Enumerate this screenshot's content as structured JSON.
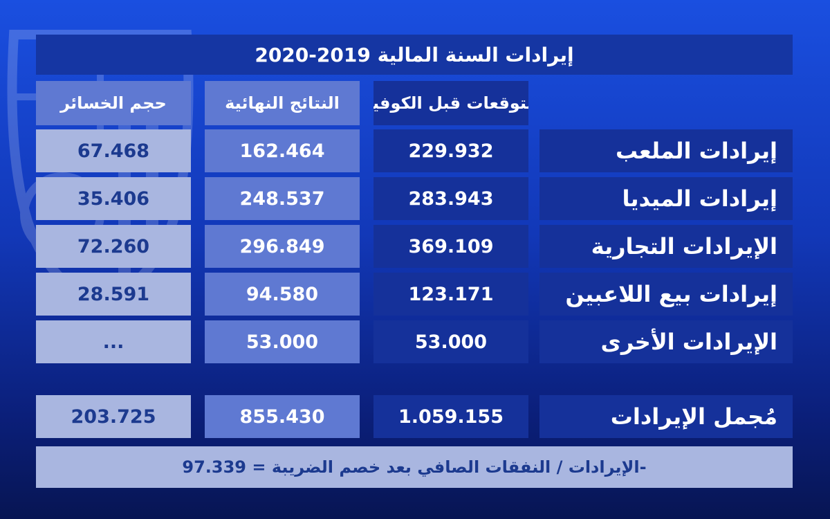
{
  "title": "إيرادات السنة المالية 2019-2020",
  "headers": {
    "pre_covid": "التوقعات قبل الكوفيد",
    "final_results": "النتائج النهائية",
    "losses": "حجم الخسائر"
  },
  "rows": [
    {
      "label": "إيرادات الملعب",
      "pre_covid": "229.932",
      "final": "162.464",
      "losses": "67.468"
    },
    {
      "label": "إيرادات الميديا",
      "pre_covid": "283.943",
      "final": "248.537",
      "losses": "35.406"
    },
    {
      "label": "الإيرادات التجارية",
      "pre_covid": "369.109",
      "final": "296.849",
      "losses": "72.260"
    },
    {
      "label": "إيرادات بيع اللاعبين",
      "pre_covid": "123.171",
      "final": "94.580",
      "losses": "28.591"
    },
    {
      "label": "الإيرادات الأخرى",
      "pre_covid": "53.000",
      "final": "53.000",
      "losses": "..."
    }
  ],
  "total": {
    "label": "مُجمل الإيرادات",
    "pre_covid": "1.059.155",
    "final": "855.430",
    "losses": "203.725"
  },
  "net_line": "الإيرادات / النفقات الصافي بعد خصم الضريبة = 97.339-",
  "colors": {
    "background_top": "#1a4fe0",
    "background_bottom": "#071553",
    "dark_cell": "#15319a",
    "mid_cell": "#5f79d2",
    "light_cell": "#a9b6e0",
    "light_text": "#1c3a8f"
  }
}
